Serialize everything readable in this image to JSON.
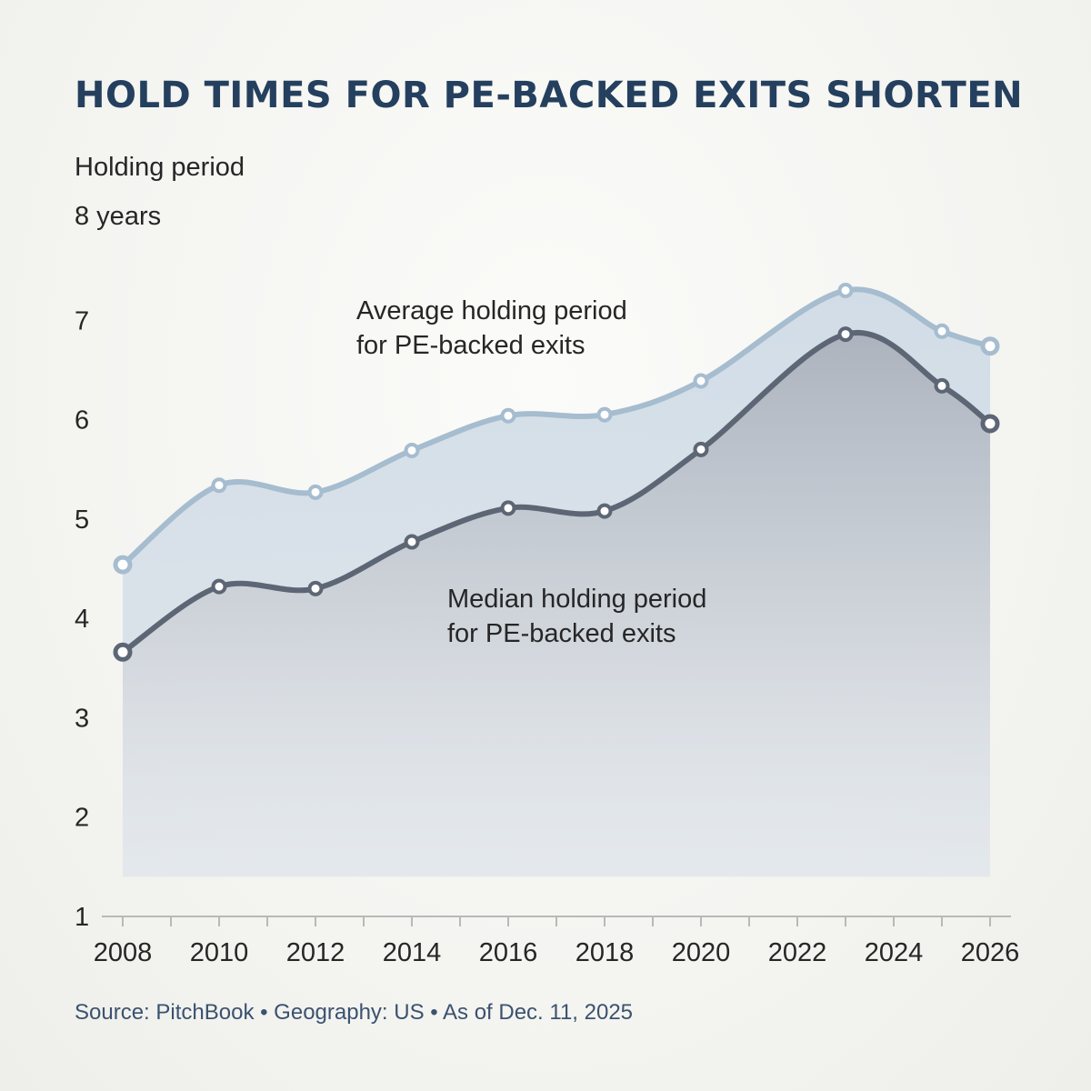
{
  "chart_data": {
    "type": "line",
    "title": "HOLD TIMES FOR PE-BACKED EXITS SHORTEN",
    "ylabel": "Holding period",
    "y_top_label": "8 years",
    "xlabel": "",
    "source": "Source: PitchBook • Geography: US • As of Dec. 11, 2025",
    "x_ticks": [
      "2008",
      "2010",
      "2012",
      "2014",
      "2016",
      "2018",
      "2020",
      "2022",
      "2024",
      "2026"
    ],
    "y_ticks": [
      "1",
      "2",
      "3",
      "4",
      "5",
      "6",
      "7"
    ],
    "xlim": [
      2008,
      2026
    ],
    "ylim": [
      1,
      8
    ],
    "grid": false,
    "legend": "inline labels",
    "series": [
      {
        "name": "Average holding period for PE-backed exits",
        "label_lines": [
          "Average holding period",
          "for PE-backed exits"
        ],
        "color": "#a6bccf",
        "points": [
          {
            "x": 2008,
            "y": 4.54
          },
          {
            "x": 2010,
            "y": 5.34
          },
          {
            "x": 2012,
            "y": 5.27
          },
          {
            "x": 2014,
            "y": 5.69
          },
          {
            "x": 2016,
            "y": 6.04
          },
          {
            "x": 2018,
            "y": 6.05
          },
          {
            "x": 2020,
            "y": 6.39
          },
          {
            "x": 2023,
            "y": 7.3
          },
          {
            "x": 2025,
            "y": 6.89
          },
          {
            "x": 2026,
            "y": 6.74
          }
        ]
      },
      {
        "name": "Median holding period for PE-backed exits",
        "label_lines": [
          "Median holding period",
          "for PE-backed exits"
        ],
        "color": "#5d6674",
        "points": [
          {
            "x": 2008,
            "y": 3.66
          },
          {
            "x": 2010,
            "y": 4.32
          },
          {
            "x": 2012,
            "y": 4.3
          },
          {
            "x": 2014,
            "y": 4.77
          },
          {
            "x": 2016,
            "y": 5.11
          },
          {
            "x": 2018,
            "y": 5.08
          },
          {
            "x": 2020,
            "y": 5.7
          },
          {
            "x": 2023,
            "y": 6.86
          },
          {
            "x": 2025,
            "y": 6.34
          },
          {
            "x": 2026,
            "y": 5.96
          }
        ]
      }
    ]
  }
}
